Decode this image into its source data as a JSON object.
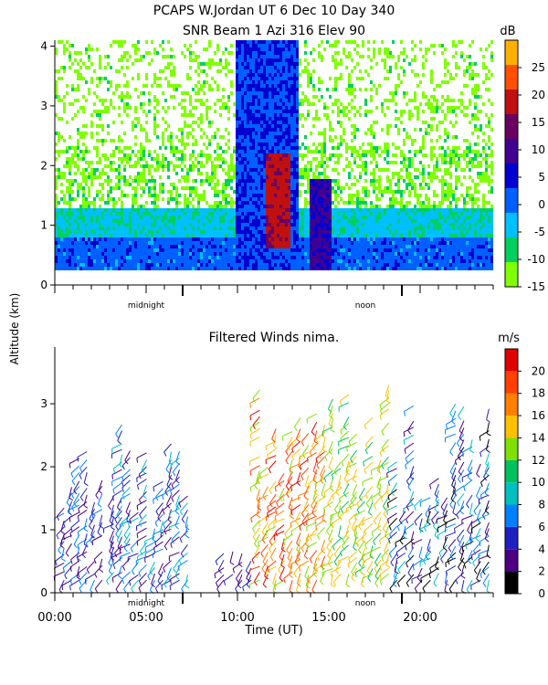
{
  "header": {
    "line1": "PCAPS W.Jordan UT   6 Dec 10 Day 340",
    "line2": "SNR Beam 1 Azi 316 Elev 90"
  },
  "shared": {
    "ylabel": "Altitude (km)",
    "xlabel": "Time (UT)",
    "midnight_label": "midnight",
    "noon_label": "noon"
  },
  "chart_data": [
    {
      "type": "heatmap",
      "title": "SNR Beam 1 Azi 316 Elev 90",
      "xlim": [
        0,
        24
      ],
      "ylim": [
        0,
        4.1
      ],
      "yticks": [
        0,
        1,
        2,
        3,
        4
      ],
      "colorbar": {
        "unit": "dB",
        "range": [
          -15,
          30
        ],
        "ticks": [
          -15,
          -10,
          -5,
          0,
          5,
          10,
          15,
          20,
          25
        ],
        "colors": [
          "#80ff00",
          "#00d060",
          "#00c0ff",
          "#0060ff",
          "#0000d0",
          "#400090",
          "#6a0060",
          "#c01010",
          "#ff5000",
          "#ffb000"
        ]
      },
      "profile": [
        {
          "alt": [
            0.25,
            0.8
          ],
          "db": 1
        },
        {
          "alt": [
            0.8,
            1.3
          ],
          "db": -5
        },
        {
          "alt": [
            1.3,
            2.3
          ],
          "db": -12
        },
        {
          "alt": [
            2.3,
            4.1
          ],
          "db": -13
        }
      ],
      "bursts": [
        {
          "t": [
            9.9,
            13.4
          ],
          "alt": [
            0.25,
            4.1
          ],
          "db": 3
        },
        {
          "t": [
            11.5,
            12.9
          ],
          "alt": [
            0.6,
            2.2
          ],
          "db": 18
        },
        {
          "t": [
            14.0,
            15.2
          ],
          "alt": [
            0.25,
            1.8
          ],
          "db": 8
        }
      ]
    },
    {
      "type": "scatter",
      "title": "Filtered Winds nima.",
      "xlim": [
        0,
        24
      ],
      "ylim": [
        0,
        3.9
      ],
      "yticks": [
        0,
        1,
        2,
        3
      ],
      "xticks": [
        0,
        5,
        10,
        15,
        20
      ],
      "xticklabels": [
        "00:00",
        "05:00",
        "10:00",
        "15:00",
        "20:00"
      ],
      "colorbar": {
        "unit": "m/s",
        "range": [
          0,
          22
        ],
        "ticks": [
          0,
          2,
          4,
          6,
          8,
          10,
          12,
          14,
          16,
          18,
          20
        ],
        "colors": [
          "#000000",
          "#4b0082",
          "#2020c0",
          "#0080ff",
          "#00c0c0",
          "#00c060",
          "#80e000",
          "#ffc000",
          "#ff8000",
          "#ff4000",
          "#e00000"
        ]
      },
      "wind_groups": [
        {
          "t": [
            0.3,
            2.8
          ],
          "alt": [
            0.2,
            2.6
          ],
          "speed": [
            2,
            8
          ]
        },
        {
          "t": [
            3.0,
            7.5
          ],
          "alt": [
            0.2,
            2.7
          ],
          "speed": [
            2,
            9
          ]
        },
        {
          "t": [
            9.0,
            11.0
          ],
          "alt": [
            0.2,
            1.0
          ],
          "speed": [
            2,
            6
          ]
        },
        {
          "t": [
            11.0,
            15.0
          ],
          "alt": [
            0.2,
            3.8
          ],
          "speed": [
            12,
            21
          ]
        },
        {
          "t": [
            15.0,
            18.5
          ],
          "alt": [
            0.3,
            3.6
          ],
          "speed": [
            11,
            16
          ]
        },
        {
          "t": [
            18.5,
            24.0
          ],
          "alt": [
            0.2,
            3.2
          ],
          "speed": [
            0,
            10
          ]
        }
      ]
    }
  ]
}
